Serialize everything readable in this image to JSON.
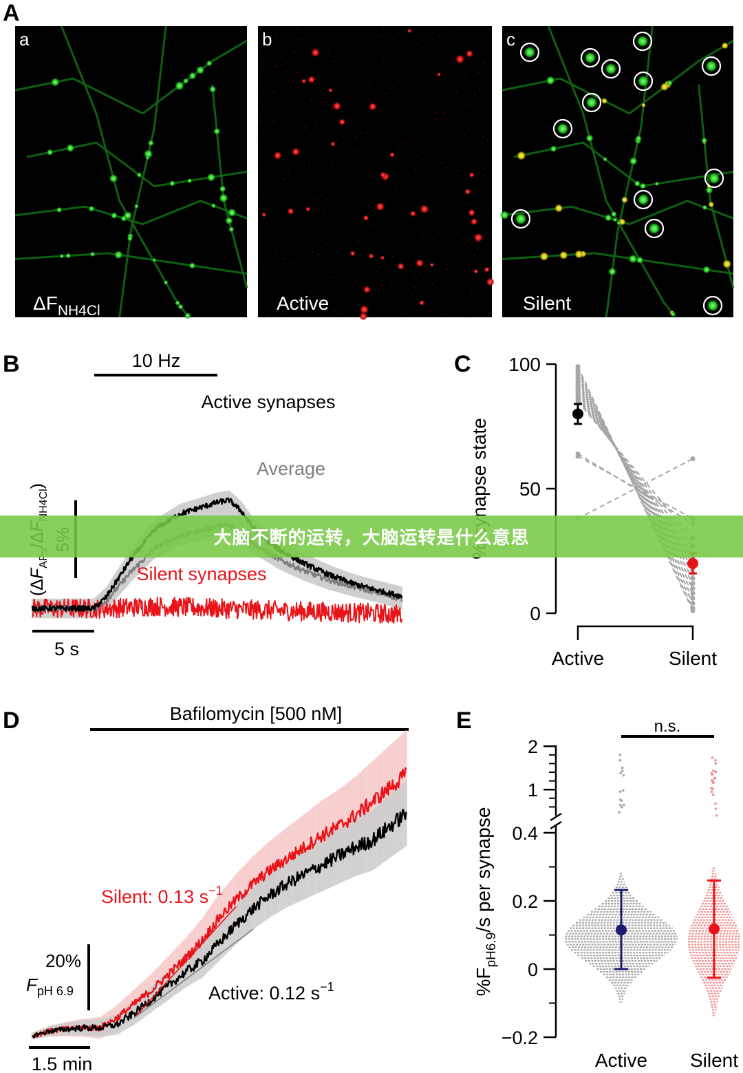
{
  "banner": {
    "text": "大脑不断的运转，大脑运转是什么意思"
  },
  "panel_labels": {
    "A": "A",
    "B": "B",
    "C": "C",
    "D": "D",
    "E": "E"
  },
  "micrographs": [
    {
      "letter": "a",
      "caption_main": "ΔF",
      "caption_sub": "NH4Cl",
      "channel": "green"
    },
    {
      "letter": "b",
      "caption_main": "Active",
      "caption_sub": "",
      "channel": "red"
    },
    {
      "letter": "c",
      "caption_main": "Silent",
      "caption_sub": "",
      "channel": "merge"
    }
  ],
  "colors": {
    "active_trace": "#000000",
    "average_trace": "#7f7f7f",
    "silent_trace": "#e8141a",
    "active_point_E": "#1a1a6e",
    "silent_point": "#e8141a",
    "gray_points": "#a6a6a6"
  },
  "chart_data": [
    {
      "panel": "B",
      "type": "line",
      "stimulus_label": "10 Hz",
      "scalebar_x": "5 s",
      "scalebar_y": "5%",
      "ylabel": "(ΔFAPs/ΔFNH4Cl)",
      "ylabel_parts": {
        "open": "(Δ",
        "f1": "F",
        "s1": "APs",
        "slash": "/Δ",
        "f2": "F",
        "s2": "NH4Cl",
        "close": ")"
      },
      "series": [
        {
          "name": "Active synapses",
          "color": "#000000",
          "x": [
            0,
            5,
            6,
            8,
            10,
            12,
            14,
            15,
            16,
            17,
            18,
            19,
            20,
            22,
            24,
            26,
            28,
            30
          ],
          "y": [
            0,
            0,
            1.5,
            6.5,
            10.5,
            12.5,
            13.5,
            14,
            14.3,
            12.8,
            10.5,
            9,
            7.8,
            6,
            4.5,
            3.3,
            2.4,
            1.6
          ]
        },
        {
          "name": "Average",
          "color": "#7f7f7f",
          "x": [
            0,
            5,
            6,
            8,
            10,
            12,
            14,
            15,
            16,
            17,
            18,
            19,
            20,
            22,
            24,
            26,
            28,
            30
          ],
          "y": [
            0,
            0,
            1,
            4.8,
            8,
            9.6,
            10.4,
            10.9,
            11,
            10,
            8.5,
            7.5,
            6.5,
            5,
            3.8,
            2.9,
            2.1,
            1.2
          ]
        },
        {
          "name": "Silent synapses",
          "color": "#e8141a",
          "x": [
            0,
            5,
            6,
            10,
            15,
            20,
            25,
            30
          ],
          "y": [
            0,
            0,
            0,
            0.3,
            0,
            -0.3,
            -0.5,
            -0.8
          ]
        }
      ]
    },
    {
      "panel": "C",
      "type": "scatter",
      "ylabel": "% synapse state",
      "categories": [
        "Active",
        "Silent"
      ],
      "yticks": [
        0,
        50,
        100
      ],
      "ylim": [
        0,
        100
      ],
      "paired_values": [
        [
          99,
          1
        ],
        [
          98,
          2
        ],
        [
          97,
          4
        ],
        [
          96,
          6
        ],
        [
          95,
          8
        ],
        [
          94,
          10
        ],
        [
          93,
          12
        ],
        [
          92,
          14
        ],
        [
          91,
          16
        ],
        [
          90,
          18
        ],
        [
          89,
          20
        ],
        [
          88,
          22
        ],
        [
          87,
          24
        ],
        [
          86,
          27
        ],
        [
          85,
          30
        ],
        [
          64,
          36
        ],
        [
          63,
          38
        ],
        [
          38,
          62
        ]
      ],
      "mean": [
        80,
        20
      ],
      "error": [
        4,
        4
      ]
    },
    {
      "panel": "D",
      "type": "line",
      "treatment_label": "Bafilomycin [500 nM]",
      "scalebar_x": "1.5 min",
      "scalebar_y": "20%",
      "ylabel_main": "F",
      "ylabel_sub": "pH 6.9",
      "series": [
        {
          "name": "Silent",
          "rate_label": "Silent: 0.13 s",
          "rate_exp": "−1",
          "color": "#e8141a",
          "x": [
            0,
            1,
            2,
            3,
            4,
            5,
            6,
            7,
            8,
            9,
            10,
            11,
            12,
            13,
            14,
            15,
            16,
            17,
            18,
            19,
            20,
            21,
            22
          ],
          "y": [
            0,
            2,
            3,
            3.5,
            3.5,
            8,
            14,
            20,
            27,
            34,
            42,
            52,
            60,
            67,
            73,
            78,
            83,
            88,
            92,
            97,
            103,
            109,
            115
          ]
        },
        {
          "name": "Active",
          "rate_label": "Active: 0.12 s",
          "rate_exp": "−1",
          "color": "#000000",
          "x": [
            0,
            1,
            2,
            3,
            4,
            5,
            6,
            7,
            8,
            9,
            10,
            11,
            12,
            13,
            14,
            15,
            16,
            17,
            18,
            19,
            20,
            21,
            22
          ],
          "y": [
            0,
            2,
            3,
            3.5,
            3.5,
            5,
            10,
            16,
            22,
            28,
            33,
            41,
            49,
            56,
            62,
            67,
            71,
            75,
            79,
            83,
            86,
            92,
            98
          ]
        }
      ]
    },
    {
      "panel": "E",
      "type": "scatter",
      "ylabel_main": "%F",
      "ylabel_sub": "pH6.9",
      "ylabel_rest": "/s per synapse",
      "categories": [
        "Active",
        "Silent"
      ],
      "yticks_lower": [
        "−0.2",
        "0",
        "0.2",
        "0.4"
      ],
      "yticks_upper": [
        "1",
        "2"
      ],
      "significance": "n.s.",
      "mean": [
        0.115,
        0.118
      ],
      "error_low": [
        0.0,
        -0.025
      ],
      "error_high": [
        0.232,
        0.26
      ]
    }
  ]
}
